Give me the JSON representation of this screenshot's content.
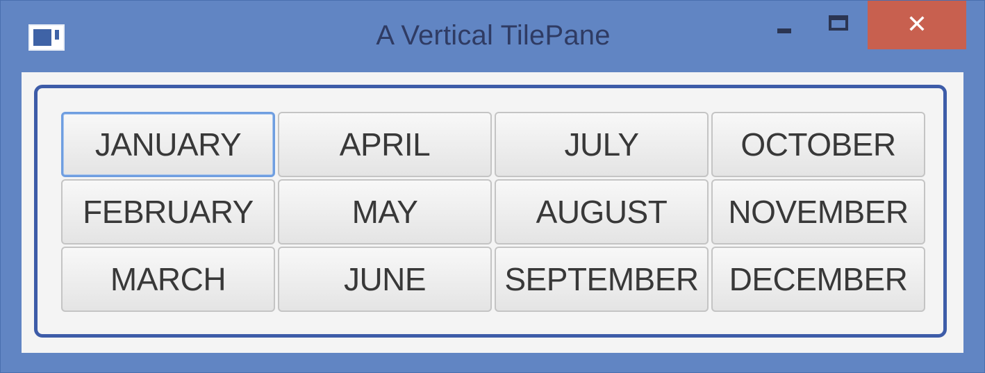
{
  "window": {
    "title": "A Vertical TilePane",
    "close_glyph": "✕"
  },
  "tilepane": {
    "buttons": [
      "JANUARY",
      "FEBRUARY",
      "MARCH",
      "APRIL",
      "MAY",
      "JUNE",
      "JULY",
      "AUGUST",
      "SEPTEMBER",
      "OCTOBER",
      "NOVEMBER",
      "DECEMBER"
    ],
    "focused": "JANUARY"
  },
  "colors": {
    "window_frame": "#6185c3",
    "close_button": "#c8604f",
    "tilepane_border": "#3d5ca8",
    "focus_ring": "#6f9ee0"
  }
}
